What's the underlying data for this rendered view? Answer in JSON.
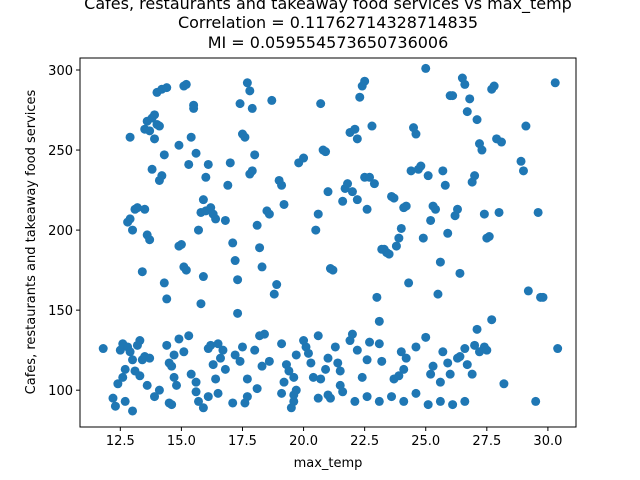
{
  "chart_data": {
    "type": "scatter",
    "title": [
      "Cafes, restaurants and takeaway food services vs max_temp",
      "Correlation = 0.11762714328714835",
      "MI = 0.059554573650736006"
    ],
    "xlabel": "max_temp",
    "ylabel": "Cafes, restaurants and takeaway food services",
    "xlim": [
      10.85,
      31.15
    ],
    "ylim": [
      77.0,
      307.5
    ],
    "xticks": [
      12.5,
      15.0,
      17.5,
      20.0,
      22.5,
      25.0,
      27.5,
      30.0
    ],
    "xtick_labels": [
      "12.5",
      "15.0",
      "17.5",
      "20.0",
      "22.5",
      "25.0",
      "27.5",
      "30.0"
    ],
    "yticks": [
      100,
      150,
      200,
      250,
      300
    ],
    "ytick_labels": [
      "100",
      "150",
      "200",
      "250",
      "300"
    ],
    "grid": false,
    "color": "#1f77b4",
    "points": [
      [
        11.8,
        126
      ],
      [
        12.2,
        95
      ],
      [
        12.3,
        90
      ],
      [
        12.4,
        104
      ],
      [
        12.5,
        125
      ],
      [
        12.6,
        129
      ],
      [
        12.7,
        93
      ],
      [
        12.8,
        127
      ],
      [
        12.9,
        258
      ],
      [
        12.9,
        124
      ],
      [
        13.0,
        87
      ],
      [
        12.8,
        205
      ],
      [
        12.9,
        207
      ],
      [
        13.1,
        213
      ],
      [
        13.2,
        214
      ],
      [
        13.0,
        200
      ],
      [
        13.2,
        128
      ],
      [
        13.3,
        109
      ],
      [
        13.4,
        119
      ],
      [
        13.5,
        121
      ],
      [
        13.5,
        263
      ],
      [
        13.6,
        268
      ],
      [
        13.4,
        174
      ],
      [
        13.6,
        197
      ],
      [
        13.7,
        194
      ],
      [
        13.5,
        213
      ],
      [
        13.7,
        262
      ],
      [
        13.8,
        270
      ],
      [
        13.9,
        272
      ],
      [
        13.8,
        238
      ],
      [
        13.9,
        257
      ],
      [
        14.0,
        266
      ],
      [
        14.1,
        265
      ],
      [
        14.0,
        286
      ],
      [
        14.2,
        288
      ],
      [
        14.3,
        247
      ],
      [
        14.4,
        289
      ],
      [
        14.1,
        231
      ],
      [
        14.2,
        234
      ],
      [
        14.3,
        167
      ],
      [
        14.4,
        157
      ],
      [
        14.5,
        117
      ],
      [
        14.6,
        115
      ],
      [
        14.7,
        108
      ],
      [
        14.8,
        103
      ],
      [
        14.5,
        92
      ],
      [
        14.6,
        91
      ],
      [
        14.9,
        190
      ],
      [
        15.0,
        191
      ],
      [
        15.1,
        177
      ],
      [
        15.2,
        175
      ],
      [
        14.9,
        253
      ],
      [
        15.1,
        290
      ],
      [
        15.2,
        291
      ],
      [
        15.3,
        241
      ],
      [
        15.4,
        258
      ],
      [
        15.5,
        276
      ],
      [
        15.5,
        278
      ],
      [
        15.6,
        248
      ],
      [
        15.7,
        200
      ],
      [
        15.8,
        211
      ],
      [
        15.9,
        219
      ],
      [
        16.0,
        212
      ],
      [
        16.0,
        233
      ],
      [
        16.1,
        241
      ],
      [
        16.2,
        214
      ],
      [
        16.3,
        210
      ],
      [
        16.4,
        207
      ],
      [
        15.6,
        99
      ],
      [
        15.7,
        93
      ],
      [
        15.9,
        89
      ],
      [
        15.8,
        154
      ],
      [
        15.9,
        171
      ],
      [
        16.1,
        126
      ],
      [
        16.2,
        128
      ],
      [
        16.3,
        116
      ],
      [
        16.4,
        107
      ],
      [
        16.5,
        98
      ],
      [
        16.6,
        120
      ],
      [
        16.7,
        125
      ],
      [
        16.8,
        206
      ],
      [
        16.9,
        228
      ],
      [
        17.0,
        242
      ],
      [
        17.1,
        192
      ],
      [
        17.2,
        181
      ],
      [
        17.3,
        169
      ],
      [
        17.3,
        148
      ],
      [
        17.4,
        118
      ],
      [
        17.5,
        127
      ],
      [
        17.6,
        92
      ],
      [
        17.7,
        96
      ],
      [
        17.5,
        260
      ],
      [
        17.6,
        258
      ],
      [
        17.4,
        279
      ],
      [
        17.7,
        292
      ],
      [
        17.8,
        287
      ],
      [
        17.9,
        276
      ],
      [
        17.8,
        235
      ],
      [
        17.9,
        237
      ],
      [
        18.0,
        247
      ],
      [
        18.1,
        203
      ],
      [
        18.2,
        189
      ],
      [
        18.3,
        177
      ],
      [
        18.4,
        135
      ],
      [
        18.2,
        134
      ],
      [
        18.5,
        212
      ],
      [
        18.6,
        210
      ],
      [
        18.7,
        281
      ],
      [
        18.8,
        160
      ],
      [
        18.9,
        166
      ],
      [
        19.0,
        231
      ],
      [
        19.1,
        228
      ],
      [
        19.2,
        216
      ],
      [
        19.3,
        116
      ],
      [
        19.4,
        112
      ],
      [
        19.5,
        89
      ],
      [
        19.6,
        93
      ],
      [
        19.7,
        100
      ],
      [
        19.8,
        242
      ],
      [
        20.0,
        245
      ],
      [
        20.1,
        127
      ],
      [
        20.2,
        123
      ],
      [
        20.3,
        117
      ],
      [
        20.4,
        108
      ],
      [
        20.5,
        200
      ],
      [
        20.6,
        210
      ],
      [
        20.7,
        279
      ],
      [
        20.8,
        250
      ],
      [
        20.9,
        249
      ],
      [
        21.0,
        224
      ],
      [
        21.1,
        176
      ],
      [
        21.2,
        175
      ],
      [
        21.0,
        97
      ],
      [
        21.1,
        95
      ],
      [
        21.3,
        127
      ],
      [
        21.4,
        117
      ],
      [
        21.5,
        103
      ],
      [
        21.6,
        218
      ],
      [
        21.7,
        226
      ],
      [
        21.8,
        229
      ],
      [
        21.9,
        261
      ],
      [
        22.0,
        224
      ],
      [
        22.1,
        263
      ],
      [
        22.2,
        219
      ],
      [
        22.2,
        257
      ],
      [
        22.3,
        283
      ],
      [
        22.4,
        290
      ],
      [
        22.5,
        293
      ],
      [
        22.5,
        233
      ],
      [
        22.6,
        213
      ],
      [
        22.7,
        233
      ],
      [
        22.8,
        265
      ],
      [
        22.9,
        229
      ],
      [
        23.0,
        158
      ],
      [
        23.1,
        143
      ],
      [
        23.2,
        188
      ],
      [
        23.3,
        188
      ],
      [
        23.4,
        186
      ],
      [
        23.5,
        185
      ],
      [
        23.6,
        221
      ],
      [
        23.7,
        220
      ],
      [
        23.8,
        190
      ],
      [
        23.9,
        195
      ],
      [
        24.0,
        201
      ],
      [
        24.1,
        214
      ],
      [
        24.2,
        215
      ],
      [
        24.3,
        167
      ],
      [
        24.4,
        237
      ],
      [
        24.5,
        264
      ],
      [
        24.6,
        260
      ],
      [
        24.7,
        238
      ],
      [
        24.8,
        240
      ],
      [
        24.9,
        195
      ],
      [
        25.0,
        301
      ],
      [
        25.1,
        234
      ],
      [
        25.2,
        206
      ],
      [
        25.3,
        215
      ],
      [
        25.4,
        213
      ],
      [
        25.5,
        160
      ],
      [
        25.6,
        180
      ],
      [
        25.7,
        237
      ],
      [
        25.8,
        228
      ],
      [
        25.9,
        198
      ],
      [
        26.0,
        284
      ],
      [
        26.1,
        284
      ],
      [
        26.2,
        209
      ],
      [
        26.3,
        213
      ],
      [
        26.4,
        173
      ],
      [
        26.5,
        295
      ],
      [
        26.6,
        291
      ],
      [
        26.7,
        274
      ],
      [
        26.8,
        282
      ],
      [
        26.9,
        230
      ],
      [
        27.0,
        234
      ],
      [
        27.1,
        269
      ],
      [
        27.2,
        254
      ],
      [
        27.3,
        250
      ],
      [
        27.4,
        210
      ],
      [
        27.5,
        195
      ],
      [
        27.6,
        196
      ],
      [
        27.7,
        288
      ],
      [
        27.8,
        290
      ],
      [
        27.9,
        257
      ],
      [
        28.0,
        211
      ],
      [
        28.1,
        255
      ],
      [
        28.9,
        243
      ],
      [
        29.0,
        237
      ],
      [
        29.1,
        265
      ],
      [
        29.2,
        162
      ],
      [
        29.6,
        211
      ],
      [
        29.7,
        158
      ],
      [
        29.8,
        158
      ],
      [
        30.3,
        292
      ],
      [
        30.4,
        126
      ],
      [
        29.5,
        93
      ],
      [
        28.2,
        104
      ],
      [
        27.7,
        144
      ],
      [
        27.1,
        138
      ],
      [
        26.6,
        93
      ],
      [
        26.1,
        91
      ],
      [
        25.6,
        93
      ],
      [
        25.1,
        91
      ],
      [
        24.6,
        98
      ],
      [
        24.1,
        93
      ],
      [
        23.6,
        96
      ],
      [
        23.1,
        93
      ],
      [
        22.6,
        96
      ],
      [
        22.1,
        93
      ],
      [
        21.6,
        99
      ],
      [
        20.6,
        95
      ],
      [
        19.6,
        97
      ],
      [
        19.1,
        98
      ],
      [
        18.1,
        101
      ],
      [
        17.1,
        92
      ],
      [
        16.1,
        96
      ],
      [
        15.6,
        105
      ],
      [
        14.1,
        100
      ],
      [
        13.6,
        103
      ],
      [
        12.6,
        108
      ],
      [
        13.1,
        112
      ],
      [
        13.7,
        120
      ],
      [
        14.4,
        128
      ],
      [
        15.1,
        124
      ],
      [
        15.3,
        134
      ],
      [
        16.5,
        129
      ],
      [
        17.2,
        122
      ],
      [
        18.0,
        125
      ],
      [
        18.6,
        118
      ],
      [
        19.1,
        129
      ],
      [
        19.7,
        122
      ],
      [
        20.0,
        131
      ],
      [
        21.0,
        120
      ],
      [
        21.5,
        112
      ],
      [
        21.9,
        131
      ],
      [
        22.2,
        125
      ],
      [
        22.7,
        130
      ],
      [
        23.2,
        118
      ],
      [
        23.7,
        107
      ],
      [
        24.2,
        120
      ],
      [
        24.6,
        127
      ],
      [
        25.0,
        133
      ],
      [
        25.3,
        115
      ],
      [
        25.6,
        105
      ],
      [
        26.0,
        110
      ],
      [
        26.3,
        120
      ],
      [
        26.7,
        116
      ],
      [
        27.0,
        128
      ],
      [
        27.4,
        127
      ],
      [
        13.3,
        131
      ],
      [
        14.9,
        132
      ],
      [
        20.6,
        134
      ],
      [
        22.0,
        135
      ],
      [
        23.1,
        129
      ],
      [
        24.1,
        113
      ],
      [
        25.9,
        117
      ],
      [
        26.6,
        126
      ],
      [
        27.2,
        124
      ],
      [
        13.0,
        119
      ],
      [
        14.7,
        122
      ],
      [
        16.8,
        113
      ],
      [
        18.3,
        115
      ],
      [
        19.6,
        108
      ],
      [
        20.9,
        113
      ],
      [
        22.4,
        108
      ],
      [
        23.9,
        109
      ],
      [
        25.2,
        110
      ],
      [
        26.9,
        110
      ],
      [
        12.7,
        113
      ],
      [
        13.9,
        96
      ],
      [
        15.4,
        110
      ],
      [
        17.7,
        107
      ],
      [
        19.2,
        105
      ],
      [
        20.7,
        107
      ],
      [
        22.6,
        119
      ],
      [
        24.0,
        124
      ],
      [
        25.7,
        124
      ],
      [
        26.4,
        121
      ],
      [
        27.5,
        125
      ]
    ]
  }
}
